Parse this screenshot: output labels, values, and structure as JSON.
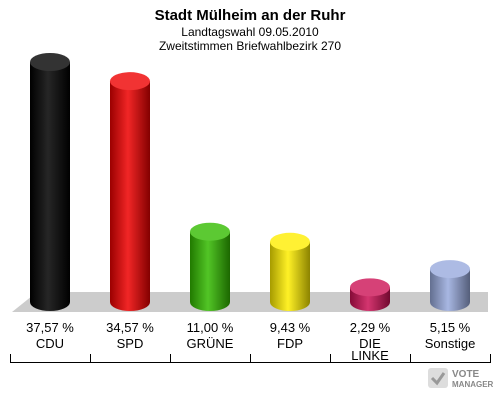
{
  "chart_data": {
    "type": "bar",
    "title": "Stadt Mülheim an der Ruhr",
    "subtitle1": "Landtagswahl 09.05.2010",
    "subtitle2": "Zweitstimmen Briefwahlbezirk 270",
    "categories": [
      "CDU",
      "SPD",
      "GRÜNE",
      "FDP",
      "DIE LINKE",
      "Sonstige"
    ],
    "category_lines": [
      [
        "CDU"
      ],
      [
        "SPD"
      ],
      [
        "GRÜNE"
      ],
      [
        "FDP"
      ],
      [
        "DIE",
        "LINKE"
      ],
      [
        "Sonstige"
      ]
    ],
    "values": [
      37.57,
      34.57,
      11.0,
      9.43,
      2.29,
      5.15
    ],
    "value_labels": [
      "37,57 %",
      "34,57 %",
      "11,00 %",
      "9,43 %",
      "2,29 %",
      "5,15 %"
    ],
    "colors": [
      "#000000",
      "#ee0000",
      "#33bb00",
      "#ffee00",
      "#cc1155",
      "#99aadd"
    ],
    "grid": false,
    "legend": "none"
  },
  "logo": {
    "line1": "VOTE",
    "line2": "MANAGER"
  }
}
